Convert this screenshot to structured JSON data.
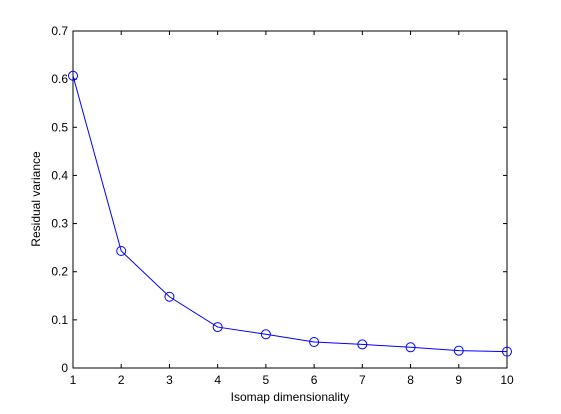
{
  "chart_data": {
    "type": "line",
    "title": "",
    "xlabel": "Isomap dimensionality",
    "ylabel": "Residual variance",
    "xlim": [
      1,
      10
    ],
    "ylim": [
      0,
      0.7
    ],
    "xticks": [
      1,
      2,
      3,
      4,
      5,
      6,
      7,
      8,
      9,
      10
    ],
    "yticks": [
      0,
      0.1,
      0.2,
      0.3,
      0.4,
      0.5,
      0.6,
      0.7
    ],
    "ytick_labels": [
      "0",
      "0.1",
      "0.2",
      "0.3",
      "0.4",
      "0.5",
      "0.6",
      "0.7"
    ],
    "grid": false,
    "legend": "none",
    "series": [
      {
        "x": [
          1,
          2,
          3,
          4,
          5,
          6,
          7,
          8,
          9,
          10
        ],
        "values": [
          0.607,
          0.243,
          0.148,
          0.085,
          0.07,
          0.054,
          0.049,
          0.043,
          0.036,
          0.034
        ],
        "marker": "circle",
        "color": "#0000ff"
      }
    ]
  }
}
